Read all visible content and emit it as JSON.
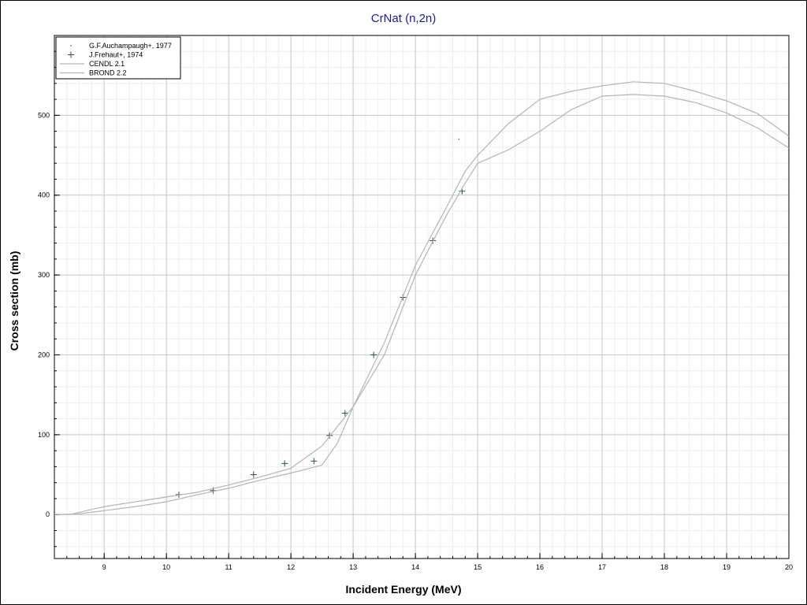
{
  "chart_data": {
    "type": "line",
    "title": "CrNat (n,2n)",
    "xlabel": "Incident Energy (MeV)",
    "ylabel": "Cross section (mb)",
    "xlim": [
      8.2,
      20
    ],
    "ylim": [
      -55,
      600
    ],
    "xticks": [
      9,
      10,
      11,
      12,
      13,
      14,
      15,
      16,
      17,
      18,
      19,
      20
    ],
    "yticks": [
      0,
      100,
      200,
      300,
      400,
      500
    ],
    "grid": true,
    "legend_position": "top-left",
    "series": [
      {
        "name": "G.F.Auchampaugh+, 1977",
        "kind": "points",
        "marker": "dot",
        "points": [
          [
            14.7,
            470
          ]
        ]
      },
      {
        "name": "J.Frehaut+, 1974",
        "kind": "points",
        "marker": "plus",
        "points": [
          [
            10.2,
            25
          ],
          [
            10.75,
            30
          ],
          [
            11.4,
            50
          ],
          [
            11.9,
            64
          ],
          [
            12.37,
            67
          ],
          [
            12.62,
            99
          ],
          [
            12.87,
            127
          ],
          [
            13.33,
            200
          ],
          [
            13.8,
            272
          ],
          [
            14.28,
            343
          ],
          [
            14.75,
            405
          ]
        ]
      },
      {
        "name": "CENDL 2.1",
        "kind": "line",
        "points": [
          [
            8.5,
            1
          ],
          [
            9,
            10
          ],
          [
            10,
            22
          ],
          [
            10.5,
            28
          ],
          [
            11,
            37
          ],
          [
            11.5,
            47
          ],
          [
            12,
            58
          ],
          [
            12.5,
            86
          ],
          [
            13,
            135
          ],
          [
            13.5,
            215
          ],
          [
            14,
            312
          ],
          [
            14.5,
            385
          ],
          [
            14.8,
            430
          ],
          [
            15,
            450
          ],
          [
            15.5,
            490
          ],
          [
            16,
            520
          ],
          [
            16.5,
            530
          ],
          [
            17,
            537
          ],
          [
            17.5,
            542
          ],
          [
            18,
            540
          ],
          [
            18.5,
            530
          ],
          [
            19,
            518
          ],
          [
            19.5,
            502
          ],
          [
            20,
            474
          ]
        ]
      },
      {
        "name": "BROND 2.2",
        "kind": "line",
        "points": [
          [
            8.2,
            0
          ],
          [
            8.6,
            1
          ],
          [
            9,
            5
          ],
          [
            9.5,
            10
          ],
          [
            10,
            16
          ],
          [
            10.5,
            25
          ],
          [
            11,
            33
          ],
          [
            11.5,
            43
          ],
          [
            12,
            52
          ],
          [
            12.5,
            62
          ],
          [
            12.75,
            90
          ],
          [
            13,
            135
          ],
          [
            13.5,
            200
          ],
          [
            14,
            300
          ],
          [
            14.5,
            375
          ],
          [
            14.8,
            415
          ],
          [
            15,
            440
          ],
          [
            15.5,
            457
          ],
          [
            16,
            480
          ],
          [
            16.5,
            507
          ],
          [
            17,
            524
          ],
          [
            17.5,
            526
          ],
          [
            18,
            524
          ],
          [
            18.5,
            516
          ],
          [
            19,
            503
          ],
          [
            19.5,
            484
          ],
          [
            20,
            459
          ]
        ]
      }
    ]
  }
}
